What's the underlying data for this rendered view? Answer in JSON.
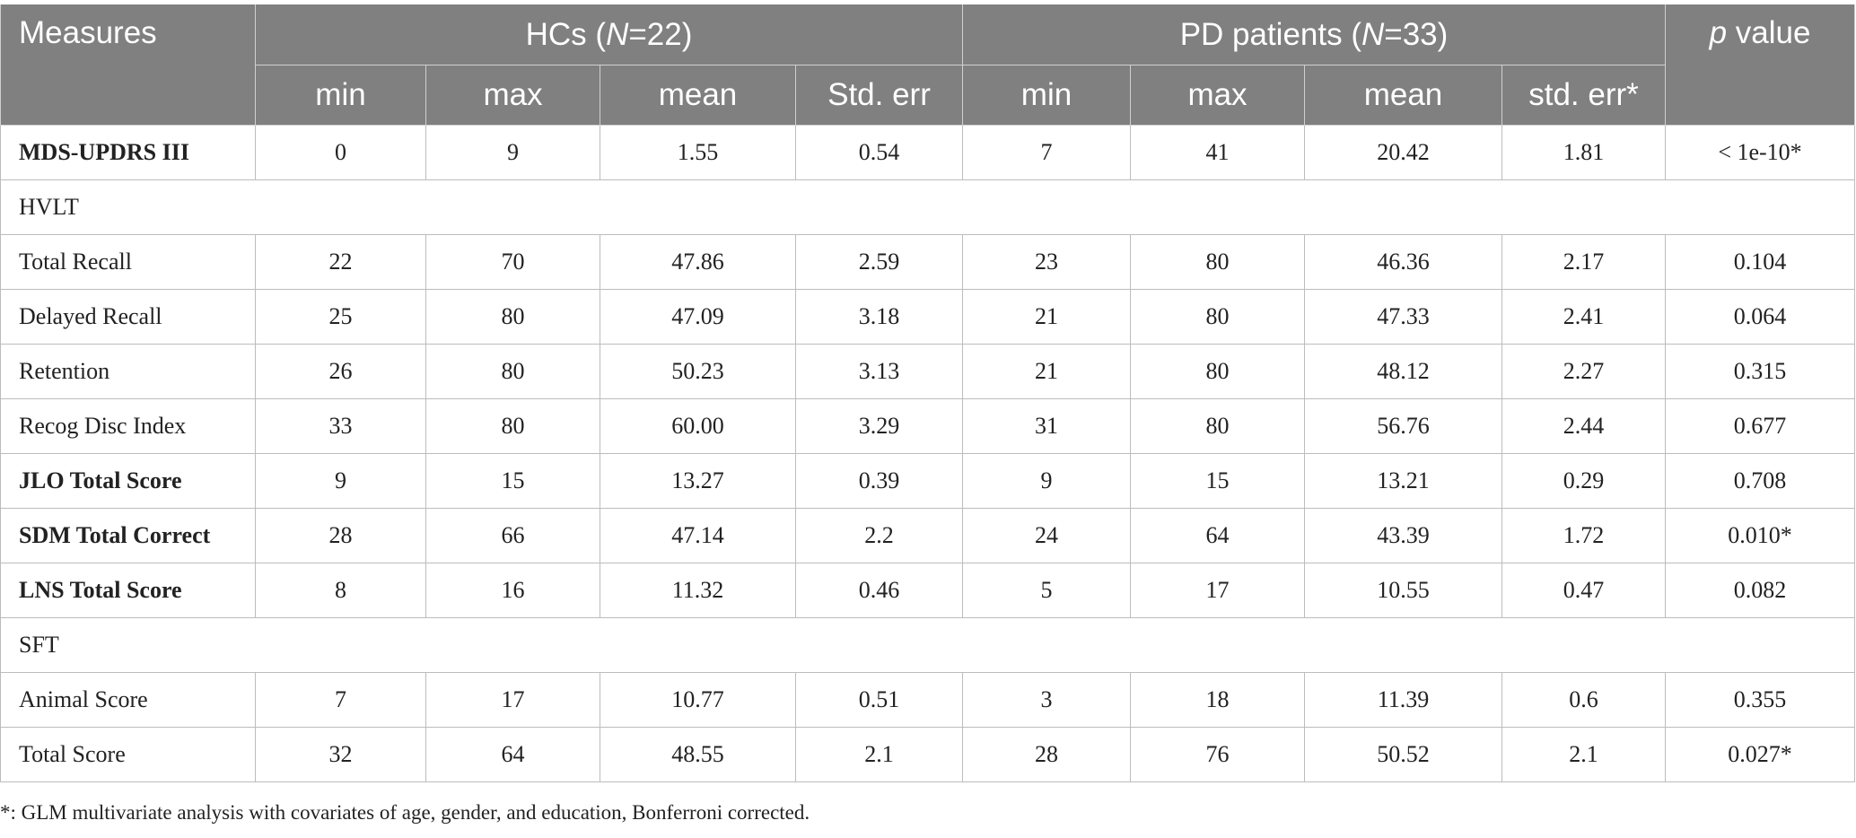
{
  "header": {
    "measures": "Measures",
    "hc_group_prefix": "HCs (",
    "hc_group_n": "N",
    "hc_group_suffix": "=22)",
    "pd_group_prefix": "PD patients (",
    "pd_group_n": "N",
    "pd_group_suffix": "=33)",
    "p_value_p": "p",
    "p_value_rest": " value",
    "sub_columns": [
      "min",
      "max",
      "mean",
      "Std. err",
      "min",
      "max",
      "mean",
      "std. err*"
    ]
  },
  "rows": [
    {
      "type": "data",
      "bold": true,
      "label": "MDS-UPDRS III",
      "cells": [
        "0",
        "9",
        "1.55",
        "0.54",
        "7",
        "41",
        "20.42",
        "1.81",
        "< 1e-10*"
      ]
    },
    {
      "type": "section",
      "label": "HVLT"
    },
    {
      "type": "data",
      "bold": false,
      "label": "Total Recall",
      "cells": [
        "22",
        "70",
        "47.86",
        "2.59",
        "23",
        "80",
        "46.36",
        "2.17",
        "0.104"
      ]
    },
    {
      "type": "data",
      "bold": false,
      "label": "Delayed Recall",
      "cells": [
        "25",
        "80",
        "47.09",
        "3.18",
        "21",
        "80",
        "47.33",
        "2.41",
        "0.064"
      ]
    },
    {
      "type": "data",
      "bold": false,
      "label": "Retention",
      "cells": [
        "26",
        "80",
        "50.23",
        "3.13",
        "21",
        "80",
        "48.12",
        "2.27",
        "0.315"
      ]
    },
    {
      "type": "data",
      "bold": false,
      "label": "Recog Disc Index",
      "cells": [
        "33",
        "80",
        "60.00",
        "3.29",
        "31",
        "80",
        "56.76",
        "2.44",
        "0.677"
      ]
    },
    {
      "type": "data",
      "bold": true,
      "label": "JLO Total Score",
      "cells": [
        "9",
        "15",
        "13.27",
        "0.39",
        "9",
        "15",
        "13.21",
        "0.29",
        "0.708"
      ]
    },
    {
      "type": "data",
      "bold": true,
      "label": "SDM Total Correct",
      "cells": [
        "28",
        "66",
        "47.14",
        "2.2",
        "24",
        "64",
        "43.39",
        "1.72",
        "0.010*"
      ]
    },
    {
      "type": "data",
      "bold": true,
      "label": "LNS Total Score",
      "cells": [
        "8",
        "16",
        "11.32",
        "0.46",
        "5",
        "17",
        "10.55",
        "0.47",
        "0.082"
      ]
    },
    {
      "type": "section",
      "label": "SFT"
    },
    {
      "type": "data",
      "bold": false,
      "label": "Animal Score",
      "cells": [
        "7",
        "17",
        "10.77",
        "0.51",
        "3",
        "18",
        "11.39",
        "0.6",
        "0.355"
      ]
    },
    {
      "type": "data",
      "bold": false,
      "label": "Total Score",
      "cells": [
        "32",
        "64",
        "48.55",
        "2.1",
        "28",
        "76",
        "50.52",
        "2.1",
        "0.027*"
      ]
    }
  ],
  "footnote": "*: GLM multivariate analysis with covariates of age, gender, and education, Bonferroni corrected.",
  "colors": {
    "header_bg": "#808080",
    "header_text": "#ffffff",
    "grid": "#bcbcbc"
  }
}
